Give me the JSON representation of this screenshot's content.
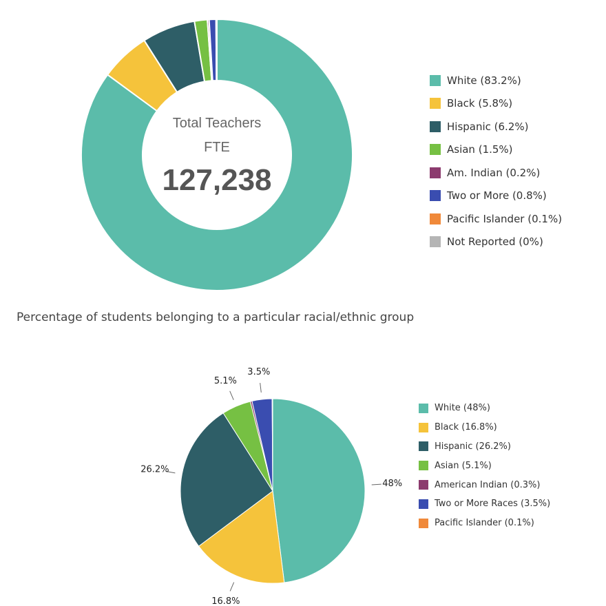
{
  "chart_data": [
    {
      "type": "pie",
      "variant": "donut",
      "center_text": {
        "line1": "Total Teachers",
        "line2": "FTE",
        "value": "127,238"
      },
      "categories": [
        "White",
        "Black",
        "Hispanic",
        "Asian",
        "Am. Indian",
        "Two or More",
        "Pacific Islander",
        "Not Reported"
      ],
      "values": [
        83.2,
        5.8,
        6.2,
        1.5,
        0.2,
        0.8,
        0.1,
        0
      ],
      "colors": [
        "#5bbcaa",
        "#f5c33b",
        "#2e5e67",
        "#76c043",
        "#8c3b6e",
        "#3a4db0",
        "#f0893a",
        "#b5b5b5"
      ],
      "legend": {
        "position": "right",
        "entries": [
          "White (83.2%)",
          "Black (5.8%)",
          "Hispanic (6.2%)",
          "Asian (1.5%)",
          "Am. Indian (0.2%)",
          "Two or More (0.8%)",
          "Pacific Islander (0.1%)",
          "Not Reported (0%)"
        ]
      }
    },
    {
      "type": "pie",
      "title": "Percentage of students belonging to a particular racial/ethnic group",
      "categories": [
        "White",
        "Black",
        "Hispanic",
        "Asian",
        "American Indian",
        "Two or More Races",
        "Pacific Islander"
      ],
      "values": [
        48,
        16.8,
        26.2,
        5.1,
        0.3,
        3.5,
        0.1
      ],
      "colors": [
        "#5bbcaa",
        "#f5c33b",
        "#2e5e67",
        "#76c043",
        "#8c3b6e",
        "#3a4db0",
        "#f0893a"
      ],
      "data_labels": [
        "48%",
        "16.8%",
        "26.2%",
        "5.1%",
        "",
        "3.5%",
        ""
      ],
      "legend": {
        "position": "right",
        "entries": [
          "White (48%)",
          "Black (16.8%)",
          "Hispanic (26.2%)",
          "Asian (5.1%)",
          "American Indian (0.3%)",
          "Two or More Races (3.5%)",
          "Pacific Islander (0.1%)"
        ]
      }
    }
  ]
}
